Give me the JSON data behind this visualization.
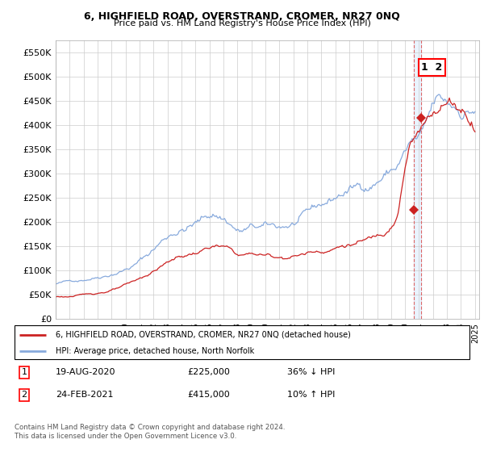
{
  "title": "6, HIGHFIELD ROAD, OVERSTRAND, CROMER, NR27 0NQ",
  "subtitle": "Price paid vs. HM Land Registry's House Price Index (HPI)",
  "legend_line1": "6, HIGHFIELD ROAD, OVERSTRAND, CROMER, NR27 0NQ (detached house)",
  "legend_line2": "HPI: Average price, detached house, North Norfolk",
  "transaction1_date": "19-AUG-2020",
  "transaction1_price": "£225,000",
  "transaction1_hpi": "36% ↓ HPI",
  "transaction2_date": "24-FEB-2021",
  "transaction2_price": "£415,000",
  "transaction2_hpi": "10% ↑ HPI",
  "footer": "Contains HM Land Registry data © Crown copyright and database right 2024.\nThis data is licensed under the Open Government Licence v3.0.",
  "hpi_color": "#88aadd",
  "price_color": "#cc2222",
  "marker_color": "#cc2222",
  "dashed_color": "#dd6666",
  "shade_color": "#ddbbbb",
  "ylim": [
    0,
    575000
  ],
  "yticks": [
    0,
    50000,
    100000,
    150000,
    200000,
    250000,
    300000,
    350000,
    400000,
    450000,
    500000,
    550000
  ],
  "ytick_labels": [
    "£0",
    "£50K",
    "£100K",
    "£150K",
    "£200K",
    "£250K",
    "£300K",
    "£350K",
    "£400K",
    "£450K",
    "£500K",
    "£550K"
  ],
  "transaction1_x": 2020.63,
  "transaction1_y": 225000,
  "transaction2_x": 2021.12,
  "transaction2_y": 415000,
  "xlim_left": 1995.0,
  "xlim_right": 2025.3
}
